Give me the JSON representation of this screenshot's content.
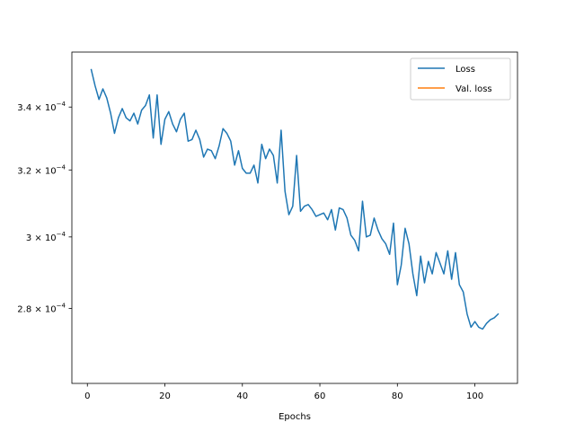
{
  "chart_data": {
    "type": "line",
    "title": "",
    "xlabel": "Epochs",
    "ylabel": "",
    "xlim": [
      -4,
      111
    ],
    "ylim": [
      0.0002605,
      0.0003585
    ],
    "yscale": "log",
    "grid": false,
    "legend_position": "top-right",
    "x_ticks": [
      0,
      20,
      40,
      60,
      80,
      100
    ],
    "y_ticks": [
      {
        "value": 0.00034,
        "mantissa": "3.4",
        "exponent": "−4"
      },
      {
        "value": 0.00032,
        "mantissa": "3.2",
        "exponent": "−4"
      },
      {
        "value": 0.0003,
        "mantissa": "3",
        "exponent": "−4"
      },
      {
        "value": 0.00028,
        "mantissa": "2.8",
        "exponent": "−4"
      }
    ],
    "series": [
      {
        "name": "Loss",
        "color": "#1f77b4",
        "x_start": 1,
        "x_step": 1,
        "values": [
          0.0003525,
          0.000347,
          0.0003425,
          0.000346,
          0.000343,
          0.000338,
          0.0003315,
          0.0003365,
          0.0003395,
          0.0003365,
          0.0003355,
          0.000338,
          0.0003345,
          0.000339,
          0.0003405,
          0.000344,
          0.00033,
          0.000344,
          0.000328,
          0.000336,
          0.0003385,
          0.0003345,
          0.000332,
          0.000336,
          0.000338,
          0.000329,
          0.0003295,
          0.0003325,
          0.0003295,
          0.000324,
          0.0003265,
          0.000326,
          0.0003235,
          0.0003275,
          0.000333,
          0.0003315,
          0.000329,
          0.0003215,
          0.000326,
          0.0003205,
          0.000319,
          0.000319,
          0.0003215,
          0.000316,
          0.000328,
          0.0003235,
          0.0003265,
          0.0003245,
          0.000316,
          0.0003325,
          0.0003135,
          0.0003065,
          0.000309,
          0.0003245,
          0.0003075,
          0.000309,
          0.0003095,
          0.000308,
          0.000306,
          0.0003065,
          0.000307,
          0.000305,
          0.000308,
          0.000302,
          0.0003085,
          0.000308,
          0.0003055,
          0.0003005,
          0.000299,
          0.000296,
          0.0003105,
          0.0003,
          0.0003005,
          0.0003055,
          0.000302,
          0.0002995,
          0.000298,
          0.000295,
          0.000304,
          0.0002865,
          0.000292,
          0.0003025,
          0.000298,
          0.0002895,
          0.0002835,
          0.0002945,
          0.000287,
          0.000293,
          0.0002895,
          0.0002955,
          0.0002925,
          0.0002895,
          0.000296,
          0.000288,
          0.0002955,
          0.0002865,
          0.0002845,
          0.0002785,
          0.000275,
          0.0002765,
          0.000275,
          0.0002745,
          0.000276,
          0.000277,
          0.0002775,
          0.0002785
        ]
      },
      {
        "name": "Val. loss",
        "color": "#ff7f0e",
        "values": []
      }
    ]
  }
}
